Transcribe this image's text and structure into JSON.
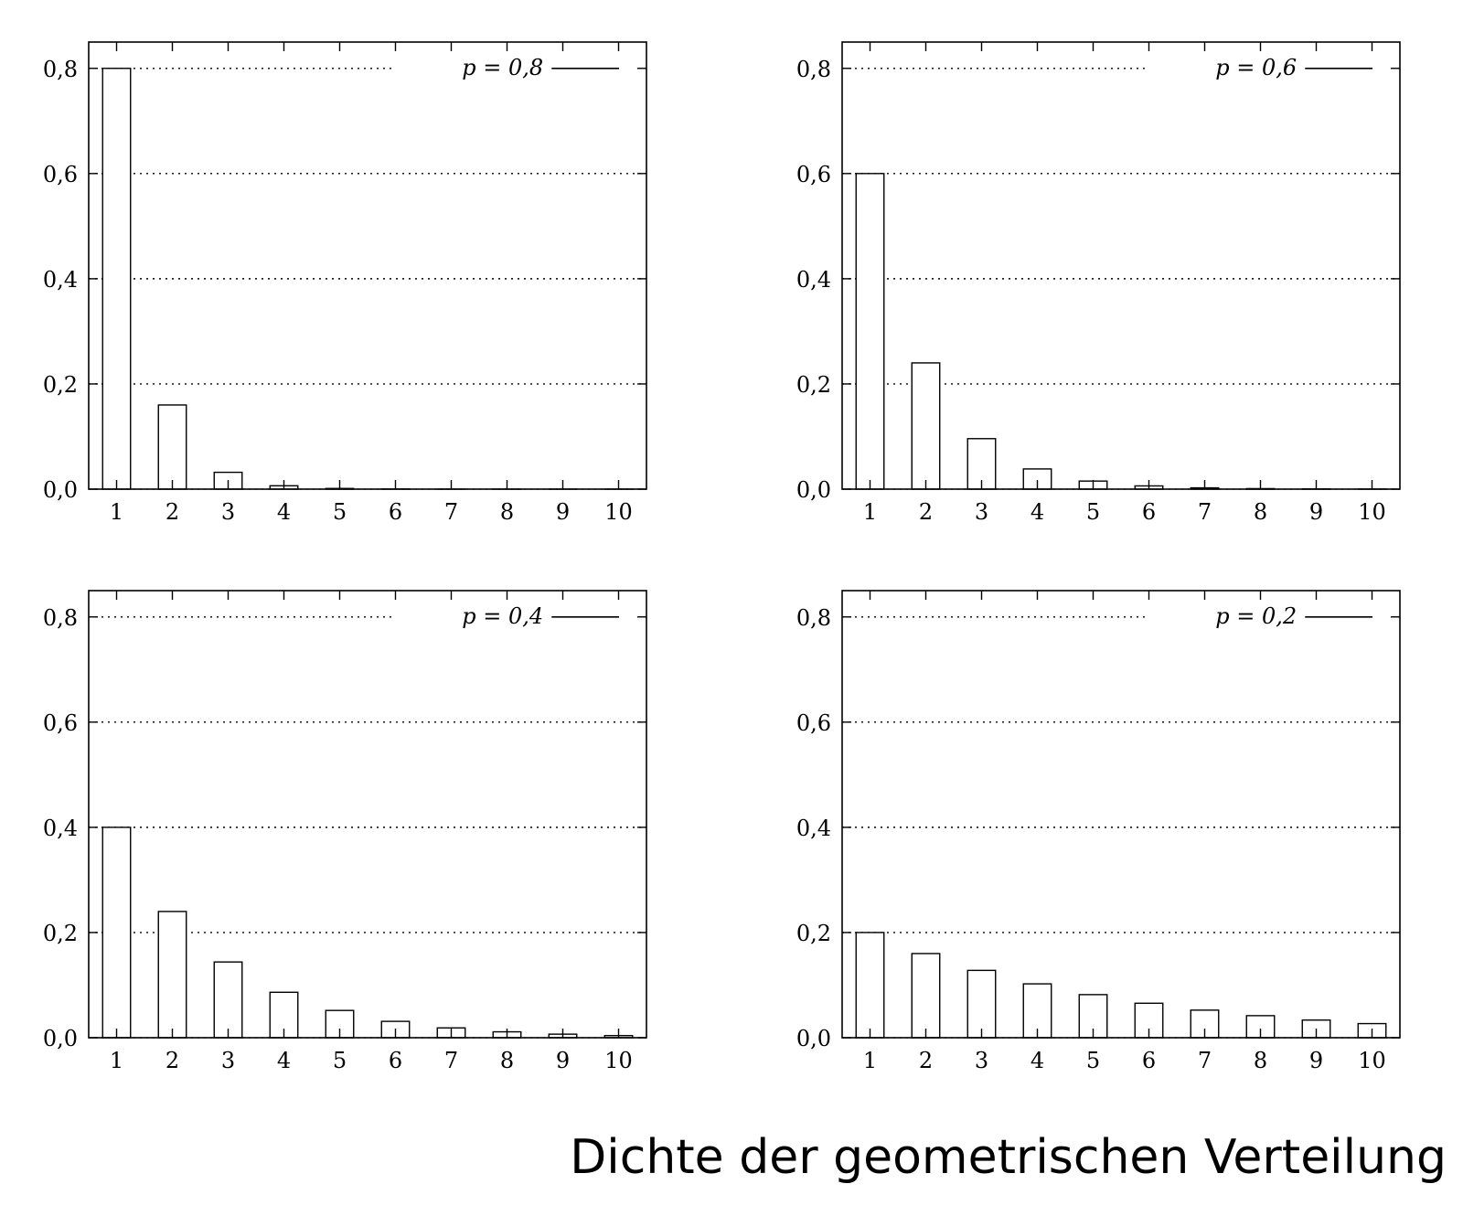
{
  "caption": "Dichte der geometrischen Verteilung",
  "chart_data": [
    {
      "type": "bar",
      "legend": "p = 0,8",
      "legend_position": "top-right",
      "categories": [
        "1",
        "2",
        "3",
        "4",
        "5",
        "6",
        "7",
        "8",
        "9",
        "10"
      ],
      "values": [
        0.8,
        0.16,
        0.032,
        0.0064,
        0.00128,
        0.000256,
        5.12e-05,
        1.02e-05,
        2e-06,
        4e-07
      ],
      "ylim": [
        0,
        0.85
      ],
      "yticks": [
        "0,0",
        "0,2",
        "0,4",
        "0,6",
        "0,8"
      ],
      "ytick_values": [
        0,
        0.2,
        0.4,
        0.6,
        0.8
      ],
      "grid": "y-dotted"
    },
    {
      "type": "bar",
      "legend": "p = 0,6",
      "legend_position": "top-right",
      "categories": [
        "1",
        "2",
        "3",
        "4",
        "5",
        "6",
        "7",
        "8",
        "9",
        "10"
      ],
      "values": [
        0.6,
        0.24,
        0.096,
        0.0384,
        0.01536,
        0.00614,
        0.00246,
        0.00098,
        0.00039,
        0.00016
      ],
      "ylim": [
        0,
        0.85
      ],
      "yticks": [
        "0,0",
        "0,2",
        "0,4",
        "0,6",
        "0,8"
      ],
      "ytick_values": [
        0,
        0.2,
        0.4,
        0.6,
        0.8
      ],
      "grid": "y-dotted"
    },
    {
      "type": "bar",
      "legend": "p = 0,4",
      "legend_position": "top-right",
      "categories": [
        "1",
        "2",
        "3",
        "4",
        "5",
        "6",
        "7",
        "8",
        "9",
        "10"
      ],
      "values": [
        0.4,
        0.24,
        0.144,
        0.0864,
        0.05184,
        0.0311,
        0.01866,
        0.0112,
        0.00672,
        0.00403
      ],
      "ylim": [
        0,
        0.85
      ],
      "yticks": [
        "0,0",
        "0,2",
        "0,4",
        "0,6",
        "0,8"
      ],
      "ytick_values": [
        0,
        0.2,
        0.4,
        0.6,
        0.8
      ],
      "grid": "y-dotted"
    },
    {
      "type": "bar",
      "legend": "p = 0,2",
      "legend_position": "top-right",
      "categories": [
        "1",
        "2",
        "3",
        "4",
        "5",
        "6",
        "7",
        "8",
        "9",
        "10"
      ],
      "values": [
        0.2,
        0.16,
        0.128,
        0.1024,
        0.08192,
        0.06554,
        0.05243,
        0.04194,
        0.03355,
        0.02684
      ],
      "ylim": [
        0,
        0.85
      ],
      "yticks": [
        "0,0",
        "0,2",
        "0,4",
        "0,6",
        "0,8"
      ],
      "ytick_values": [
        0,
        0.2,
        0.4,
        0.6,
        0.8
      ],
      "grid": "y-dotted"
    }
  ]
}
